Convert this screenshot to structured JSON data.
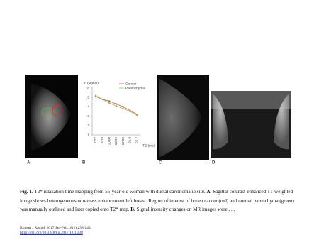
{
  "figure": {
    "panels": [
      "A",
      "B",
      "C",
      "D"
    ],
    "caption": [
      {
        "text": "Fig. 1.",
        "bold": true
      },
      {
        "text": " T2* relaxation time mapping from 55-year-old woman with ductal carcinoma "
      },
      {
        "text": "in situ",
        "italic": true
      },
      {
        "text": ". "
      },
      {
        "text": "A.",
        "bold": true
      },
      {
        "text": " Sagittal contrast-enhanced T1-weighted image shows heterogeneous non-mass enhancement left breast. Region of interest of breast cancer (red) and normal parenchyma (green) was manually outlined and later copied onto T2* map. "
      },
      {
        "text": "B.",
        "bold": true
      },
      {
        "text": " Signal intensity changes on MR images were . . ."
      }
    ],
    "citation": "Korean J Radiol. 2017 Jan-Feb;18(1):238-248.",
    "doi": "https://doi.org/10.3348/kjr.2017.18.1.238"
  },
  "chart_data": {
    "type": "line",
    "y_label": "ln (signal)",
    "x_label": "TE (ms)",
    "categories": [
      "2.27",
      "6.18",
      "10.08",
      "13.99",
      "17.89",
      "21.8",
      "25.7"
    ],
    "series": [
      {
        "name": "Cancer",
        "color": "#c0504d",
        "values": [
          5.1,
          4.8,
          4.6,
          4.3,
          4.0,
          3.6,
          3.2
        ]
      },
      {
        "name": "Parenchyma",
        "color": "#9bbb59",
        "values": [
          5.2,
          4.8,
          4.4,
          4.1,
          3.8,
          3.5,
          3.1
        ]
      }
    ],
    "ylim": [
      1,
      6
    ],
    "yticks": [
      1,
      2,
      3,
      4,
      5,
      6
    ],
    "grid": false,
    "legend": "top-right"
  }
}
